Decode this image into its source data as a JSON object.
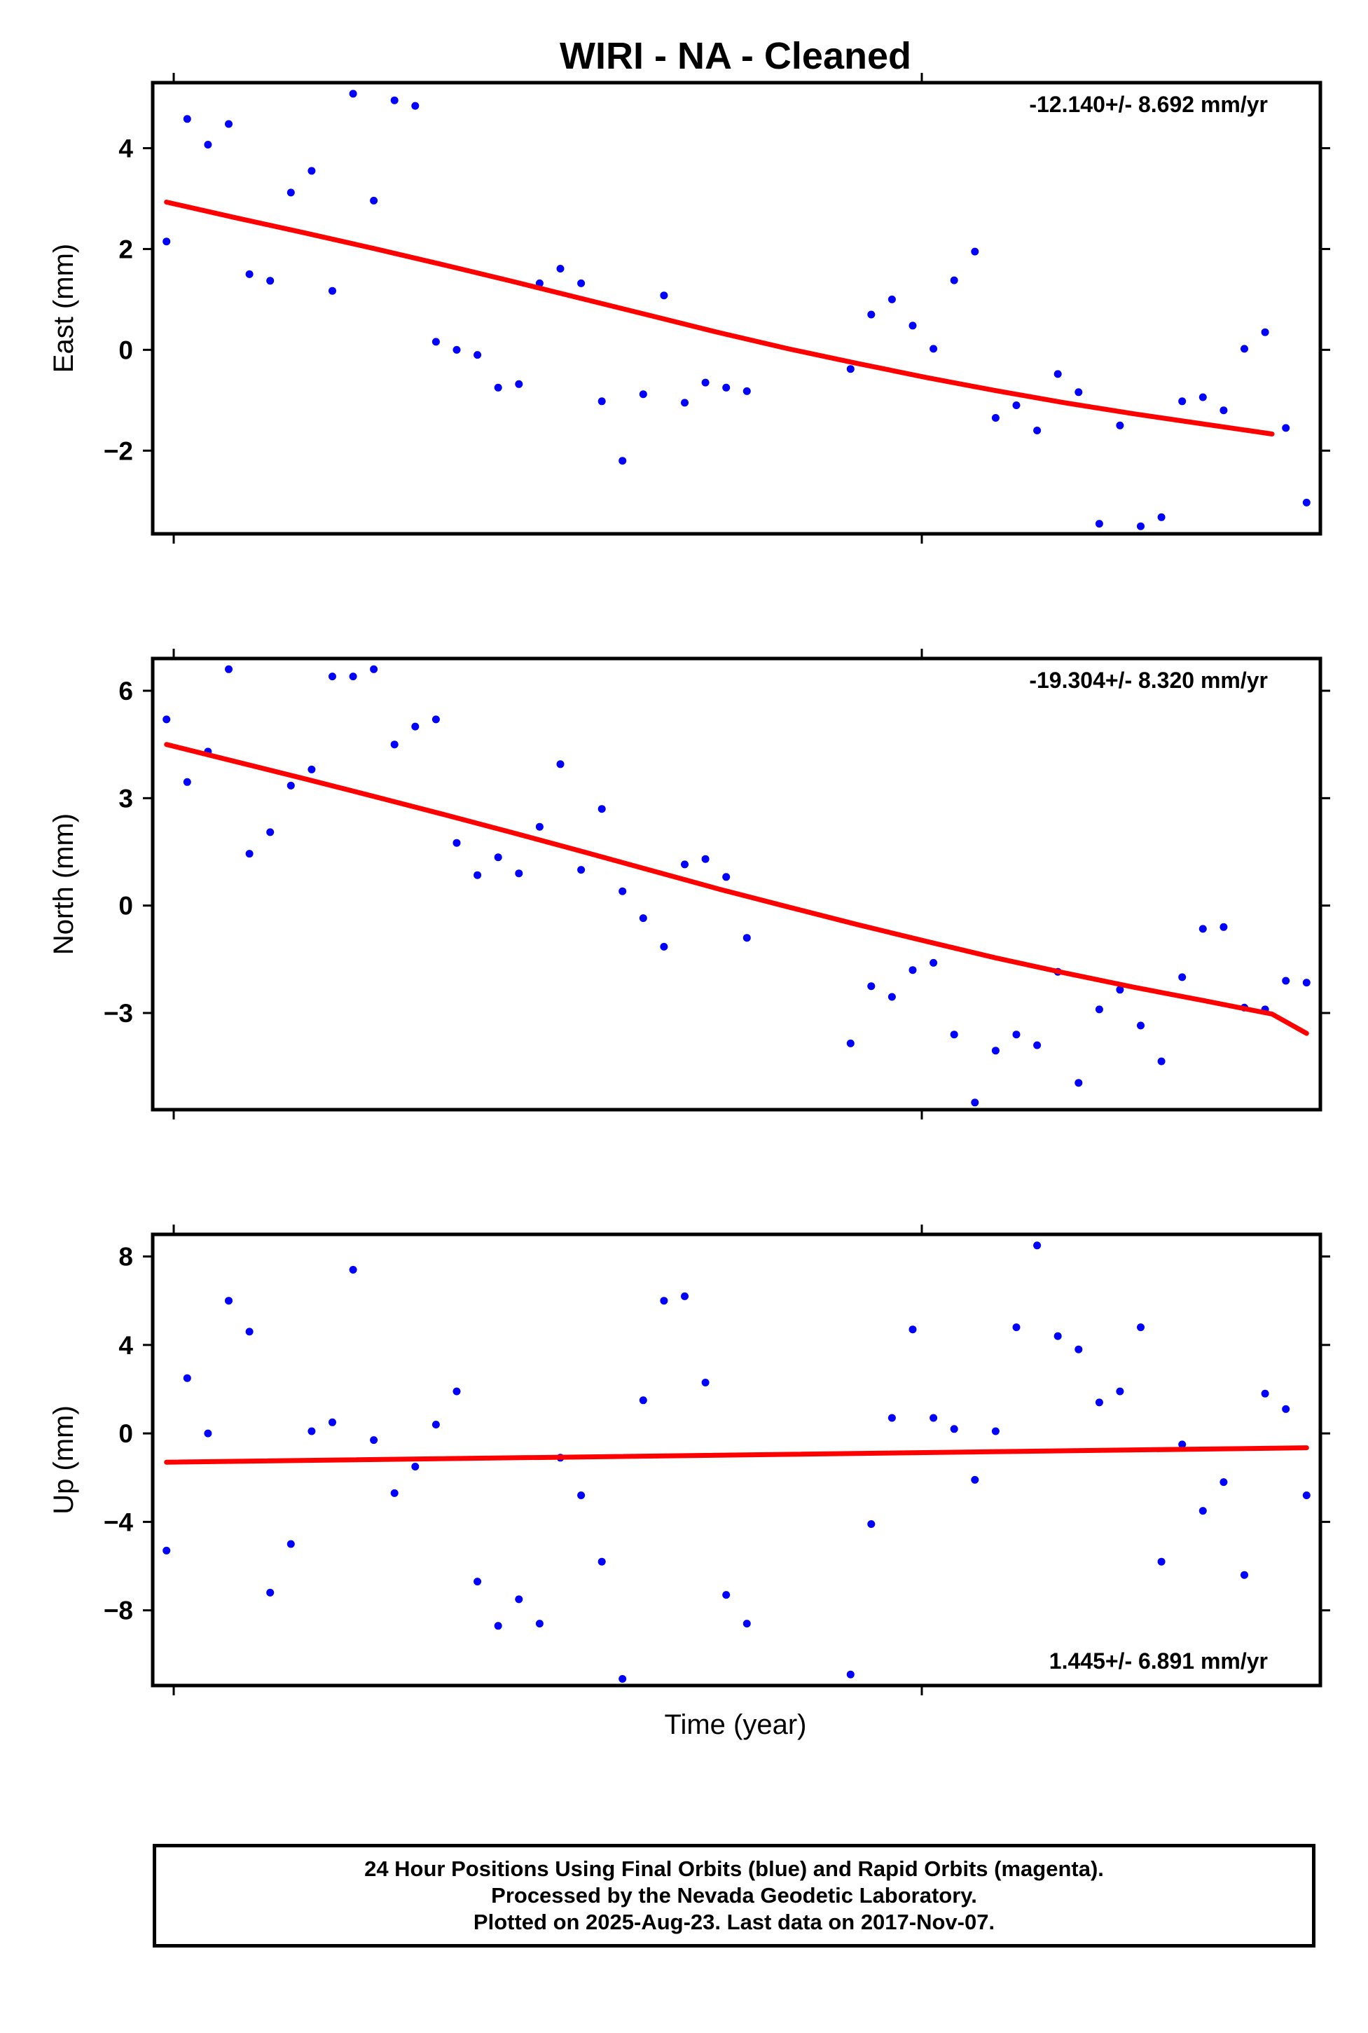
{
  "chart_data": {
    "title": "WIRI  - NA - Cleaned",
    "xlabel": "Time (year)",
    "footer": [
      "24 Hour Positions Using Final Orbits (blue) and Rapid Orbits (magenta).",
      "Processed by the Nevada Geodetic Laboratory.",
      "Plotted on 2025-Aug-23. Last data on 2017-Nov-07."
    ],
    "colors": {
      "points": "#0000ff",
      "fit": "#ff0000",
      "axes": "#000000"
    },
    "panels": [
      {
        "type": "scatter",
        "ylabel": "East (mm)",
        "rate_label": "-12.140+/- 8.692 mm/yr",
        "rate_position": "top-right",
        "ylim": [
          -3.65,
          5.3
        ],
        "yticks": [
          -2,
          0,
          2,
          4
        ],
        "ytick_labels": [
          "−2",
          "0",
          "2",
          "4"
        ],
        "fit_line": [
          [
            0,
            2.93
          ],
          [
            10,
            2.62
          ],
          [
            20,
            2.32
          ],
          [
            30,
            2.01
          ],
          [
            40,
            1.69
          ],
          [
            50,
            1.36
          ],
          [
            60,
            1.02
          ],
          [
            70,
            0.68
          ],
          [
            80,
            0.34
          ],
          [
            90,
            0.02
          ],
          [
            100,
            -0.27
          ],
          [
            110,
            -0.55
          ],
          [
            120,
            -0.81
          ],
          [
            130,
            -1.05
          ],
          [
            140,
            -1.27
          ],
          [
            150,
            -1.47
          ],
          [
            155,
            -1.57
          ],
          [
            160,
            -1.67
          ]
        ],
        "points": [
          [
            0,
            2.15
          ],
          [
            3,
            4.58
          ],
          [
            6,
            4.07
          ],
          [
            9,
            4.48
          ],
          [
            12,
            1.5
          ],
          [
            15,
            1.37
          ],
          [
            18,
            3.12
          ],
          [
            21,
            3.55
          ],
          [
            24,
            1.17
          ],
          [
            27,
            5.08
          ],
          [
            30,
            2.96
          ],
          [
            33,
            4.95
          ],
          [
            36,
            4.84
          ],
          [
            39,
            0.16
          ],
          [
            42,
            0.0
          ],
          [
            45,
            -0.1
          ],
          [
            48,
            -0.75
          ],
          [
            51,
            -0.68
          ],
          [
            54,
            1.32
          ],
          [
            57,
            1.61
          ],
          [
            60,
            1.32
          ],
          [
            63,
            -1.02
          ],
          [
            66,
            -2.2
          ],
          [
            69,
            -0.88
          ],
          [
            72,
            1.08
          ],
          [
            75,
            -1.05
          ],
          [
            78,
            -0.65
          ],
          [
            81,
            -0.75
          ],
          [
            84,
            -0.82
          ],
          [
            99,
            -0.38
          ],
          [
            102,
            0.7
          ],
          [
            105,
            1.0
          ],
          [
            108,
            0.48
          ],
          [
            111,
            0.02
          ],
          [
            114,
            1.38
          ],
          [
            117,
            1.95
          ],
          [
            120,
            -1.35
          ],
          [
            123,
            -1.1
          ],
          [
            126,
            -1.6
          ],
          [
            129,
            -0.48
          ],
          [
            132,
            -0.84
          ],
          [
            135,
            -3.45
          ],
          [
            138,
            -1.5
          ],
          [
            141,
            -3.5
          ],
          [
            144,
            -3.32
          ],
          [
            147,
            -1.02
          ],
          [
            150,
            -0.94
          ],
          [
            153,
            -1.2
          ],
          [
            156,
            0.02
          ],
          [
            159,
            0.35
          ],
          [
            162,
            -1.55
          ],
          [
            165,
            -3.03
          ]
        ]
      },
      {
        "type": "scatter",
        "ylabel": "North (mm)",
        "rate_label": "-19.304+/- 8.320 mm/yr",
        "rate_position": "top-right",
        "ylim": [
          -5.7,
          6.9
        ],
        "yticks": [
          -3,
          0,
          3,
          6
        ],
        "ytick_labels": [
          "−3",
          "0",
          "3",
          "6"
        ],
        "fit_line": [
          [
            0,
            4.5
          ],
          [
            10,
            4.02
          ],
          [
            20,
            3.54
          ],
          [
            30,
            3.05
          ],
          [
            40,
            2.55
          ],
          [
            50,
            2.04
          ],
          [
            60,
            1.52
          ],
          [
            70,
            0.99
          ],
          [
            80,
            0.46
          ],
          [
            90,
            -0.04
          ],
          [
            100,
            -0.53
          ],
          [
            110,
            -1.0
          ],
          [
            120,
            -1.46
          ],
          [
            130,
            -1.88
          ],
          [
            140,
            -2.28
          ],
          [
            150,
            -2.65
          ],
          [
            155,
            -2.84
          ],
          [
            160,
            -3.03
          ],
          [
            165,
            -3.57
          ]
        ],
        "points": [
          [
            0,
            5.2
          ],
          [
            3,
            3.45
          ],
          [
            6,
            4.3
          ],
          [
            9,
            6.6
          ],
          [
            12,
            1.45
          ],
          [
            15,
            2.05
          ],
          [
            18,
            3.35
          ],
          [
            21,
            3.8
          ],
          [
            24,
            6.4
          ],
          [
            27,
            6.4
          ],
          [
            30,
            6.6
          ],
          [
            33,
            4.5
          ],
          [
            36,
            5.0
          ],
          [
            39,
            5.2
          ],
          [
            42,
            1.75
          ],
          [
            45,
            0.85
          ],
          [
            48,
            1.35
          ],
          [
            51,
            0.9
          ],
          [
            54,
            2.2
          ],
          [
            57,
            3.95
          ],
          [
            60,
            1.0
          ],
          [
            63,
            2.7
          ],
          [
            66,
            0.4
          ],
          [
            69,
            -0.35
          ],
          [
            72,
            -1.15
          ],
          [
            75,
            1.15
          ],
          [
            78,
            1.3
          ],
          [
            81,
            0.8
          ],
          [
            84,
            -0.9
          ],
          [
            99,
            -3.85
          ],
          [
            102,
            -2.25
          ],
          [
            105,
            -2.55
          ],
          [
            108,
            -1.8
          ],
          [
            111,
            -1.6
          ],
          [
            114,
            -3.6
          ],
          [
            117,
            -5.5
          ],
          [
            120,
            -4.05
          ],
          [
            123,
            -3.6
          ],
          [
            126,
            -3.9
          ],
          [
            129,
            -1.85
          ],
          [
            132,
            -4.95
          ],
          [
            135,
            -2.9
          ],
          [
            138,
            -2.35
          ],
          [
            141,
            -3.35
          ],
          [
            144,
            -4.35
          ],
          [
            147,
            -2.0
          ],
          [
            150,
            -0.65
          ],
          [
            153,
            -0.6
          ],
          [
            156,
            -2.85
          ],
          [
            159,
            -2.9
          ],
          [
            162,
            -2.1
          ],
          [
            165,
            -2.15
          ]
        ]
      },
      {
        "type": "scatter",
        "ylabel": "Up (mm)",
        "rate_label": "1.445+/- 6.891 mm/yr",
        "rate_position": "bottom-right",
        "ylim": [
          -11.4,
          9.0
        ],
        "yticks": [
          -8,
          -4,
          0,
          4,
          8
        ],
        "ytick_labels": [
          "−8",
          "−4",
          "0",
          "4",
          "8"
        ],
        "fit_line": [
          [
            0,
            -1.3
          ],
          [
            165,
            -0.65
          ]
        ],
        "points": [
          [
            0,
            -5.3
          ],
          [
            3,
            2.5
          ],
          [
            6,
            0.0
          ],
          [
            9,
            6.0
          ],
          [
            12,
            4.6
          ],
          [
            15,
            -7.2
          ],
          [
            18,
            -5.0
          ],
          [
            21,
            0.1
          ],
          [
            24,
            0.5
          ],
          [
            27,
            7.4
          ],
          [
            30,
            -0.3
          ],
          [
            33,
            -2.7
          ],
          [
            36,
            -1.5
          ],
          [
            39,
            0.4
          ],
          [
            42,
            1.9
          ],
          [
            45,
            -6.7
          ],
          [
            48,
            -8.7
          ],
          [
            51,
            -7.5
          ],
          [
            54,
            -8.6
          ],
          [
            57,
            -1.1
          ],
          [
            60,
            -2.8
          ],
          [
            63,
            -5.8
          ],
          [
            66,
            -11.1
          ],
          [
            69,
            1.5
          ],
          [
            72,
            6.0
          ],
          [
            75,
            6.2
          ],
          [
            78,
            2.3
          ],
          [
            81,
            -7.3
          ],
          [
            84,
            -8.6
          ],
          [
            99,
            -10.9
          ],
          [
            102,
            -4.1
          ],
          [
            105,
            0.7
          ],
          [
            108,
            4.7
          ],
          [
            111,
            0.7
          ],
          [
            114,
            0.2
          ],
          [
            117,
            -2.1
          ],
          [
            120,
            0.1
          ],
          [
            123,
            4.8
          ],
          [
            126,
            8.5
          ],
          [
            129,
            4.4
          ],
          [
            132,
            3.8
          ],
          [
            135,
            1.4
          ],
          [
            138,
            1.9
          ],
          [
            141,
            4.8
          ],
          [
            144,
            -5.8
          ],
          [
            147,
            -0.5
          ],
          [
            150,
            -3.5
          ],
          [
            153,
            -2.2
          ],
          [
            156,
            -6.4
          ],
          [
            159,
            1.8
          ],
          [
            162,
            1.1
          ],
          [
            165,
            -2.8
          ]
        ]
      }
    ]
  }
}
